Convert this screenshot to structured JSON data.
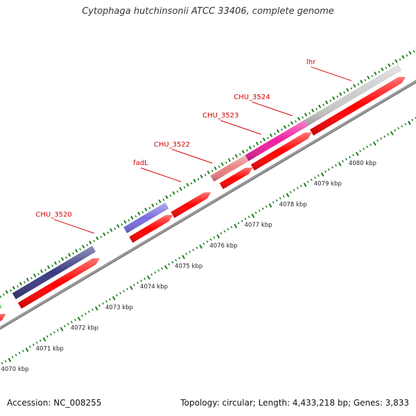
{
  "title": "Cytophaga hutchinsonii ATCC 33406, complete genome",
  "footer": {
    "accession": "Accession: NC_008255",
    "summary": "Topology: circular; Length: 4,433,218 bp; Genes: 3,833"
  },
  "colors": {
    "cds": "#ff0000",
    "backbone": "#999999",
    "tick": "#1a7a1a",
    "label": "#d00000",
    "purple_dark": "#3a3a82",
    "purple_light": "#7a6ee0",
    "pink_light": "#e98080",
    "magenta": "#ee1fa0",
    "gray": "#cccccc",
    "green": "#33cc33",
    "orange": "#ff9900"
  },
  "gene_labels": [
    {
      "name": "CHU_3520",
      "kbp": 4073.4
    },
    {
      "name": "fadL",
      "kbp": 4075.9
    },
    {
      "name": "CHU_3522",
      "kbp": 4076.8
    },
    {
      "name": "CHU_3523",
      "kbp": 4078.2
    },
    {
      "name": "CHU_3524",
      "kbp": 4079.1
    },
    {
      "name": "lhr",
      "kbp": 4080.8
    }
  ],
  "kbp_ticks": [
    "4070 kbp",
    "4071 kbp",
    "4072 kbp",
    "4073 kbp",
    "4074 kbp",
    "4075 kbp",
    "4076 kbp",
    "4077 kbp",
    "4078 kbp",
    "4079 kbp",
    "4080 kbp"
  ]
}
